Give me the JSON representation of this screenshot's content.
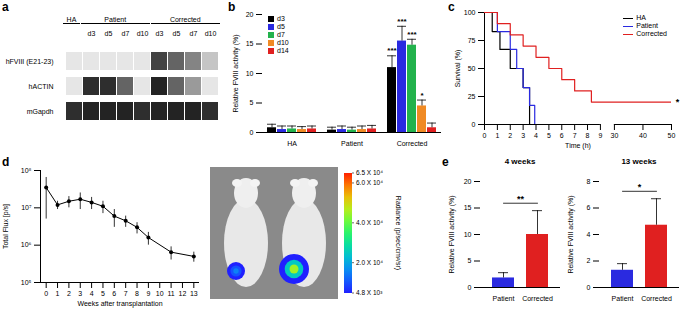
{
  "chart_data": [
    {
      "panel": "a",
      "type": "gel",
      "groups": [
        {
          "name": "HA",
          "lanes": [
            null
          ]
        },
        {
          "name": "Patient",
          "lanes": [
            "d3",
            "d5",
            "d7",
            "d10"
          ]
        },
        {
          "name": "Corrected",
          "lanes": [
            "d3",
            "d5",
            "d7",
            "d10"
          ]
        }
      ],
      "rows": [
        {
          "name": "hFVIII (E21-23)",
          "values": [
            0,
            0,
            0,
            0,
            0,
            0.75,
            0.6,
            0.45,
            0.15
          ]
        },
        {
          "name": "hACTIN",
          "values": [
            0,
            0.85,
            0.85,
            0.6,
            0,
            0.9,
            0.6,
            0.35,
            0
          ]
        },
        {
          "name": "mGapdh",
          "values": [
            0.85,
            0.9,
            0.9,
            0.9,
            0.85,
            0.9,
            0.9,
            0.9,
            0.85
          ]
        }
      ],
      "intensity_range": [
        0,
        1
      ]
    },
    {
      "panel": "b",
      "type": "bar",
      "categories": [
        "HA",
        "Patient",
        "Corrected"
      ],
      "ylabel": "Relative FVIII activity (%)",
      "ylim": [
        0,
        20
      ],
      "yticks": [
        0,
        5,
        10,
        15,
        20
      ],
      "legend": "top-left",
      "series": [
        {
          "name": "d3",
          "color": "#000000",
          "values": [
            0.8,
            0.4,
            11
          ],
          "errors": [
            0.6,
            0.5,
            2
          ],
          "annotations": [
            null,
            null,
            "***"
          ]
        },
        {
          "name": "d5",
          "color": "#2a2ae0",
          "values": [
            0.5,
            0.5,
            15.5
          ],
          "errors": [
            0.6,
            0.6,
            2.5
          ],
          "annotations": [
            null,
            null,
            "***"
          ]
        },
        {
          "name": "d7",
          "color": "#22b24c",
          "values": [
            0.6,
            0.4,
            14.8
          ],
          "errors": [
            0.5,
            0.5,
            1
          ],
          "annotations": [
            null,
            null,
            "***"
          ]
        },
        {
          "name": "d10",
          "color": "#f08a24",
          "values": [
            0.5,
            0.5,
            4.5
          ],
          "errors": [
            0.5,
            0.6,
            1
          ],
          "annotations": [
            null,
            null,
            "*"
          ]
        },
        {
          "name": "d14",
          "color": "#e02020",
          "values": [
            0.6,
            0.6,
            0.8
          ],
          "errors": [
            0.5,
            0.6,
            0.8
          ],
          "annotations": [
            null,
            null,
            null
          ]
        }
      ]
    },
    {
      "panel": "c",
      "type": "step",
      "xlabel": "Time (h)",
      "ylabel": "Survival (%)",
      "xlim": [
        0,
        50
      ],
      "xticks": [
        0,
        1,
        2,
        3,
        4,
        5,
        6,
        7,
        8,
        9,
        30,
        40,
        50
      ],
      "x_break": [
        9,
        30
      ],
      "ylim": [
        0,
        100
      ],
      "yticks": [
        0,
        25,
        50,
        75,
        100
      ],
      "legend": "top-right",
      "series": [
        {
          "name": "HA",
          "color": "#000000",
          "x": [
            0,
            0.6,
            1.2,
            2,
            3,
            3.5
          ],
          "values": [
            100,
            83,
            67,
            50,
            33,
            0
          ]
        },
        {
          "name": "Patient",
          "color": "#2a2ae0",
          "x": [
            0,
            1,
            2,
            2.5,
            3,
            3.5,
            3.9
          ],
          "values": [
            100,
            83,
            67,
            50,
            33,
            17,
            0
          ]
        },
        {
          "name": "Corrected",
          "color": "#e02020",
          "x": [
            0,
            1,
            2,
            3,
            4,
            5,
            6,
            7,
            8.3,
            50
          ],
          "values": [
            100,
            90,
            80,
            70,
            60,
            50,
            40,
            30,
            20,
            20
          ],
          "annotation": "*"
        }
      ]
    },
    {
      "panel": "d",
      "type": "line",
      "marker": "circle",
      "log": "y",
      "color": "#000000",
      "xlabel": "Weeks after transplantation",
      "ylabel": "Total Flux [p/s]",
      "xlim": [
        -0.5,
        13.5
      ],
      "xticks": [
        0,
        1,
        2,
        3,
        4,
        5,
        6,
        7,
        8,
        9,
        10,
        11,
        12,
        13
      ],
      "ylim": [
        100000,
        100000000
      ],
      "yticks": [
        {
          "value": 100000,
          "label": "10⁵"
        },
        {
          "value": 1000000,
          "label": "10⁶"
        },
        {
          "value": 10000000,
          "label": "10⁷"
        },
        {
          "value": 100000000,
          "label": "10⁸"
        }
      ],
      "x": [
        0,
        1,
        2,
        3,
        4,
        5,
        6,
        7,
        8,
        9,
        11,
        13
      ],
      "values": [
        35000000,
        12000000,
        15000000,
        17000000,
        14000000,
        11000000,
        6000000,
        4500000,
        3000000,
        1600000,
        650000,
        500000
      ],
      "errors": [
        30000000,
        3000000,
        5000000,
        8000000,
        5000000,
        4000000,
        3000000,
        1500000,
        1000000,
        600000,
        250000,
        150000
      ],
      "color_bar": {
        "title": "Radiance (p/sec/cm²/sr)",
        "range": [
          4800,
          65000
        ],
        "ticks": [
          {
            "value": 65000,
            "label": "6.5 X 10⁴"
          },
          {
            "value": 60000,
            "label": "6.0 X 10⁴"
          },
          {
            "value": 40000,
            "label": "4.0 X 10⁴"
          },
          {
            "value": 20000,
            "label": "2.0 X 10⁴"
          },
          {
            "value": 4800,
            "label": "4.8 X 10³"
          }
        ]
      },
      "signals": [
        15000,
        45000
      ]
    },
    {
      "panel": "e",
      "type": "bar",
      "title": "4 weeks",
      "categories": [
        "Patient",
        "Corrected"
      ],
      "colors": [
        "#2a2ae0",
        "#e02020"
      ],
      "values": [
        1.8,
        10
      ],
      "errors": [
        1,
        4.5
      ],
      "ylabel": "Relative FVIII activity (%)",
      "ylim": [
        0,
        20
      ],
      "yticks": [
        0,
        5,
        10,
        15,
        20
      ],
      "annotation": "**"
    },
    {
      "type": "bar",
      "title": "13 weeks",
      "categories": [
        "Patient",
        "Corrected"
      ],
      "colors": [
        "#2a2ae0",
        "#e02020"
      ],
      "values": [
        1.3,
        4.7
      ],
      "errors": [
        0.5,
        2
      ],
      "ylabel": "Relative FVIII activity (%)",
      "ylim": [
        0,
        8
      ],
      "yticks": [
        0,
        2,
        4,
        6,
        8
      ],
      "annotation": "*"
    }
  ]
}
